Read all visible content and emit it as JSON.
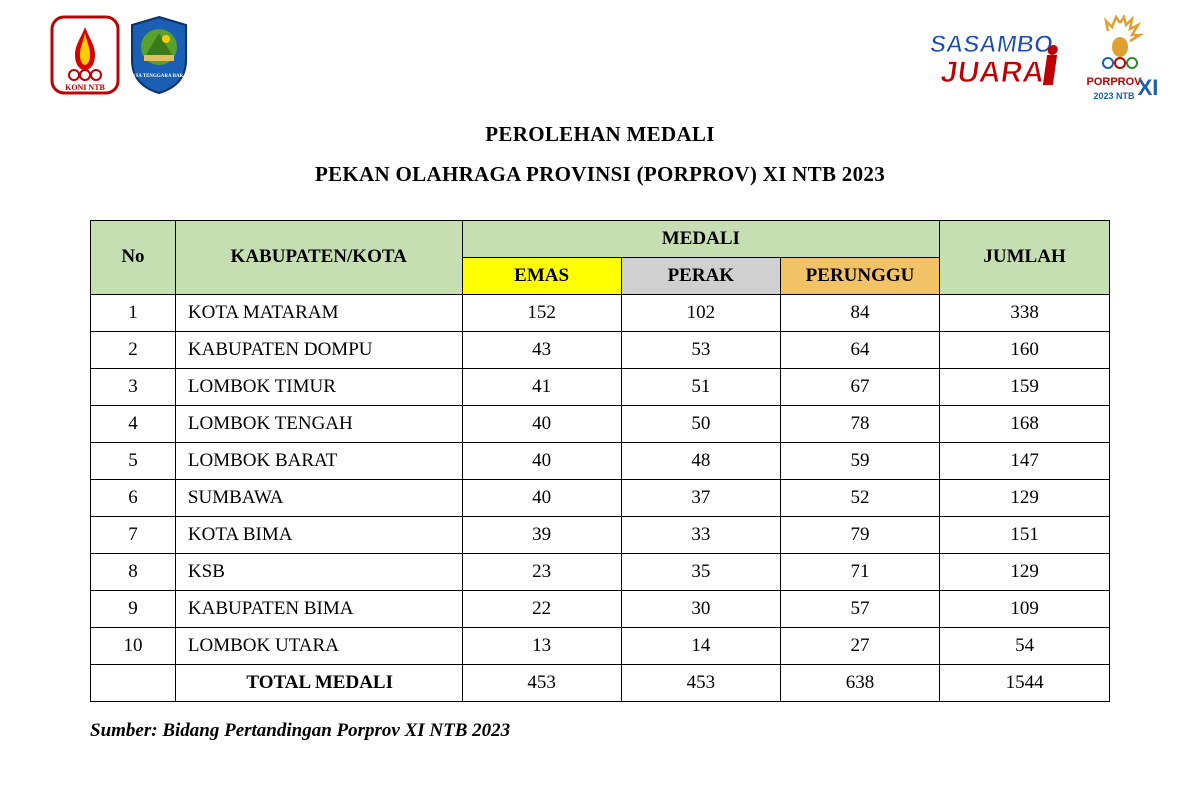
{
  "logos": {
    "koni_label": "KONI NTB",
    "ntb_label": "NUSA TENGGARA BARAT",
    "sasambo_top": "SASAMBO",
    "sasambo_bottom": "JUARA",
    "porprov_top": "PORPROV",
    "porprov_year": "2023 NTB",
    "porprov_xi": "XI"
  },
  "titles": {
    "line1": "PEROLEHAN MEDALI",
    "line2": "PEKAN OLAHRAGA PROVINSI (PORPROV) XI NTB 2023"
  },
  "table": {
    "type": "table",
    "header_bg_green": "#c5dfb3",
    "header_bg_gold": "#ffff00",
    "header_bg_silver": "#d0d0d0",
    "header_bg_bronze": "#f2c266",
    "border_color": "#000000",
    "font_size": 19,
    "columns": {
      "no": "No",
      "region": "KABUPATEN/KOTA",
      "medali": "MEDALI",
      "emas": "EMAS",
      "perak": "PERAK",
      "perunggu": "PERUNGGU",
      "jumlah": "JUMLAH"
    },
    "rows": [
      {
        "no": "1",
        "name": "KOTA MATARAM",
        "emas": "152",
        "perak": "102",
        "perunggu": "84",
        "jumlah": "338"
      },
      {
        "no": "2",
        "name": "KABUPATEN DOMPU",
        "emas": "43",
        "perak": "53",
        "perunggu": "64",
        "jumlah": "160"
      },
      {
        "no": "3",
        "name": "LOMBOK TIMUR",
        "emas": "41",
        "perak": "51",
        "perunggu": "67",
        "jumlah": "159"
      },
      {
        "no": "4",
        "name": "LOMBOK TENGAH",
        "emas": "40",
        "perak": "50",
        "perunggu": "78",
        "jumlah": "168"
      },
      {
        "no": "5",
        "name": "LOMBOK BARAT",
        "emas": "40",
        "perak": "48",
        "perunggu": "59",
        "jumlah": "147"
      },
      {
        "no": "6",
        "name": "SUMBAWA",
        "emas": "40",
        "perak": "37",
        "perunggu": "52",
        "jumlah": "129"
      },
      {
        "no": "7",
        "name": "KOTA BIMA",
        "emas": "39",
        "perak": "33",
        "perunggu": "79",
        "jumlah": "151"
      },
      {
        "no": "8",
        "name": "KSB",
        "emas": "23",
        "perak": "35",
        "perunggu": "71",
        "jumlah": "129"
      },
      {
        "no": "9",
        "name": "KABUPATEN BIMA",
        "emas": "22",
        "perak": "30",
        "perunggu": "57",
        "jumlah": "109"
      },
      {
        "no": "10",
        "name": "LOMBOK UTARA",
        "emas": "13",
        "perak": "14",
        "perunggu": "27",
        "jumlah": "54"
      }
    ],
    "total": {
      "label": "TOTAL MEDALI",
      "emas": "453",
      "perak": "453",
      "perunggu": "638",
      "jumlah": "1544"
    }
  },
  "source": "Sumber: Bidang Pertandingan Porprov XI NTB 2023"
}
